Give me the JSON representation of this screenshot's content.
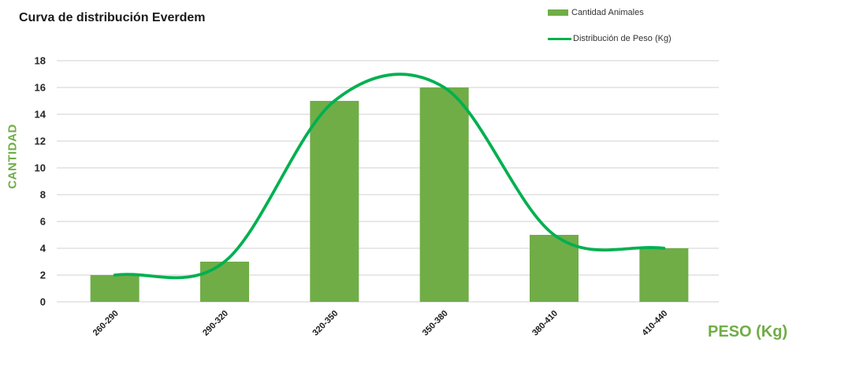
{
  "title": "Curva de distribución Everdem",
  "legend": {
    "items": [
      {
        "label": "Cantidad Animales",
        "type": "bar"
      },
      {
        "label": "Distribución de Peso (Kg)",
        "type": "line"
      }
    ]
  },
  "chart_data": {
    "type": "bar",
    "subtype": "bar+smooth-line combo",
    "title": "Curva de distribución Everdem",
    "categories": [
      "260-290",
      "290-320",
      "320-350",
      "350-380",
      "380-410",
      "410-440"
    ],
    "series": [
      {
        "name": "Cantidad Animales",
        "type": "bar",
        "color": "#70AD47",
        "values": [
          2,
          3,
          15,
          16,
          5,
          4
        ]
      },
      {
        "name": "Distribución de Peso (Kg)",
        "type": "line",
        "smooth": true,
        "color": "#00B050",
        "values": [
          2,
          3,
          15,
          16,
          5,
          4
        ]
      }
    ],
    "xlabel": "PESO (Kg)",
    "ylabel": "CANTIDAD",
    "ylim": [
      0,
      18
    ],
    "yticks": [
      0,
      2,
      4,
      6,
      8,
      10,
      12,
      14,
      16,
      18
    ],
    "grid": true,
    "gridline_color": "#D9D9D9",
    "axis_text_color": "#262626",
    "legend_position": "top-right"
  }
}
